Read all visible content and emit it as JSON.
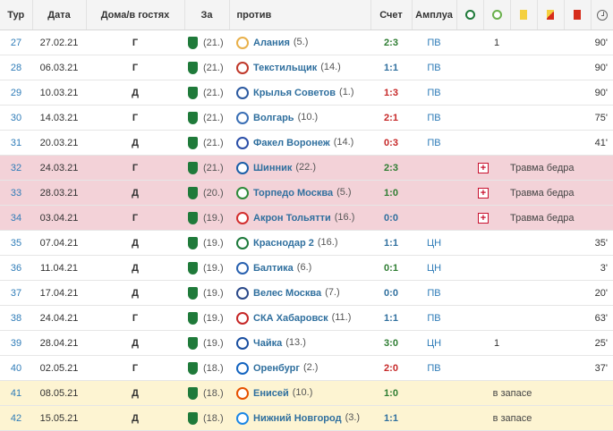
{
  "headers": {
    "round": "Тур",
    "date": "Дата",
    "home_away": "Дома/в гостях",
    "for": "За",
    "against": "против",
    "score": "Счет",
    "position": "Амплуа"
  },
  "header_icons": [
    "goals-icon",
    "assists-icon",
    "yellow-card-icon",
    "second-yellow-icon",
    "red-card-icon",
    "minutes-clock-icon"
  ],
  "colors": {
    "own_team": "#1f7a3a",
    "loss_row": "#f3d2d8",
    "bench_row": "#fdf4d2",
    "win_score": "#2e7d32",
    "loss_score": "#c62828",
    "draw_score": "#2f6f9e"
  },
  "rows": [
    {
      "round": "27",
      "date": "27.02.21",
      "ha": "Г",
      "own_pos": "(21.)",
      "opponent": "Алания",
      "opp_pos": "(5.)",
      "opp_logo": "#e8b04a",
      "score": "2:3",
      "result": "win",
      "pos": "ПВ",
      "goals": "",
      "assists": "1",
      "minutes": "90'",
      "note": "",
      "style": ""
    },
    {
      "round": "28",
      "date": "06.03.21",
      "ha": "Г",
      "own_pos": "(21.)",
      "opponent": "Текстильщик",
      "opp_pos": "(14.)",
      "opp_logo": "#c0392b",
      "score": "1:1",
      "result": "draw",
      "pos": "ПВ",
      "goals": "",
      "assists": "",
      "minutes": "90'",
      "note": "",
      "style": ""
    },
    {
      "round": "29",
      "date": "10.03.21",
      "ha": "Д",
      "own_pos": "(21.)",
      "opponent": "Крылья Советов",
      "opp_pos": "(1.)",
      "opp_logo": "#2c5aa0",
      "score": "1:3",
      "result": "loss",
      "pos": "ПВ",
      "goals": "",
      "assists": "",
      "minutes": "90'",
      "note": "",
      "style": ""
    },
    {
      "round": "30",
      "date": "14.03.21",
      "ha": "Г",
      "own_pos": "(21.)",
      "opponent": "Волгарь",
      "opp_pos": "(10.)",
      "opp_logo": "#3a6fb5",
      "score": "2:1",
      "result": "loss",
      "pos": "ПВ",
      "goals": "",
      "assists": "",
      "minutes": "75'",
      "note": "",
      "style": ""
    },
    {
      "round": "31",
      "date": "20.03.21",
      "ha": "Д",
      "own_pos": "(21.)",
      "opponent": "Факел Воронеж",
      "opp_pos": "(14.)",
      "opp_logo": "#2b4fa8",
      "score": "0:3",
      "result": "loss",
      "pos": "ПВ",
      "goals": "",
      "assists": "",
      "minutes": "41'",
      "note": "",
      "style": ""
    },
    {
      "round": "32",
      "date": "24.03.21",
      "ha": "Г",
      "own_pos": "(21.)",
      "opponent": "Шинник",
      "opp_pos": "(22.)",
      "opp_logo": "#1c5fa8",
      "score": "2:3",
      "result": "win",
      "pos": "",
      "goals": "",
      "assists": "",
      "minutes": "",
      "note": "Травма бедра",
      "style": "red"
    },
    {
      "round": "33",
      "date": "28.03.21",
      "ha": "Д",
      "own_pos": "(20.)",
      "opponent": "Торпедо Москва",
      "opp_pos": "(5.)",
      "opp_logo": "#2e8b3a",
      "score": "1:0",
      "result": "win",
      "pos": "",
      "goals": "",
      "assists": "",
      "minutes": "",
      "note": "Травма бедра",
      "style": "red"
    },
    {
      "round": "34",
      "date": "03.04.21",
      "ha": "Г",
      "own_pos": "(19.)",
      "opponent": "Акрон Тольятти",
      "opp_pos": "(16.)",
      "opp_logo": "#d32f2f",
      "score": "0:0",
      "result": "draw",
      "pos": "",
      "goals": "",
      "assists": "",
      "minutes": "",
      "note": "Травма бедра",
      "style": "red"
    },
    {
      "round": "35",
      "date": "07.04.21",
      "ha": "Д",
      "own_pos": "(19.)",
      "opponent": "Краснодар 2",
      "opp_pos": "(16.)",
      "opp_logo": "#1e7a3c",
      "score": "1:1",
      "result": "draw",
      "pos": "ЦН",
      "goals": "",
      "assists": "",
      "minutes": "35'",
      "note": "",
      "style": ""
    },
    {
      "round": "36",
      "date": "11.04.21",
      "ha": "Д",
      "own_pos": "(19.)",
      "opponent": "Балтика",
      "opp_pos": "(6.)",
      "opp_logo": "#2a62b0",
      "score": "0:1",
      "result": "win",
      "pos": "ЦН",
      "goals": "",
      "assists": "",
      "minutes": "3'",
      "note": "",
      "style": ""
    },
    {
      "round": "37",
      "date": "17.04.21",
      "ha": "Д",
      "own_pos": "(19.)",
      "opponent": "Велес Москва",
      "opp_pos": "(7.)",
      "opp_logo": "#2c4a8a",
      "score": "0:0",
      "result": "draw",
      "pos": "ПВ",
      "goals": "",
      "assists": "",
      "minutes": "20'",
      "note": "",
      "style": ""
    },
    {
      "round": "38",
      "date": "24.04.21",
      "ha": "Г",
      "own_pos": "(19.)",
      "opponent": "СКА Хабаровск",
      "opp_pos": "(11.)",
      "opp_logo": "#c62828",
      "score": "1:1",
      "result": "draw",
      "pos": "ПВ",
      "goals": "",
      "assists": "",
      "minutes": "63'",
      "note": "",
      "style": ""
    },
    {
      "round": "39",
      "date": "28.04.21",
      "ha": "Д",
      "own_pos": "(19.)",
      "opponent": "Чайка",
      "opp_pos": "(13.)",
      "opp_logo": "#1a4fa0",
      "score": "3:0",
      "result": "win",
      "pos": "ЦН",
      "goals": "",
      "assists": "1",
      "minutes": "25'",
      "note": "",
      "style": ""
    },
    {
      "round": "40",
      "date": "02.05.21",
      "ha": "Г",
      "own_pos": "(18.)",
      "opponent": "Оренбург",
      "opp_pos": "(2.)",
      "opp_logo": "#1565c0",
      "score": "2:0",
      "result": "loss",
      "pos": "ПВ",
      "goals": "",
      "assists": "",
      "minutes": "37'",
      "note": "",
      "style": ""
    },
    {
      "round": "41",
      "date": "08.05.21",
      "ha": "Д",
      "own_pos": "(18.)",
      "opponent": "Енисей",
      "opp_pos": "(10.)",
      "opp_logo": "#e65100",
      "score": "1:0",
      "result": "win",
      "pos": "",
      "goals": "",
      "assists": "",
      "minutes": "",
      "note": "в запасе",
      "style": "yellow"
    },
    {
      "round": "42",
      "date": "15.05.21",
      "ha": "Д",
      "own_pos": "(18.)",
      "opponent": "Нижний Новгород",
      "opp_pos": "(3.)",
      "opp_logo": "#1e88e5",
      "score": "1:1",
      "result": "draw",
      "pos": "",
      "goals": "",
      "assists": "",
      "minutes": "",
      "note": "в запасе",
      "style": "yellow"
    }
  ]
}
